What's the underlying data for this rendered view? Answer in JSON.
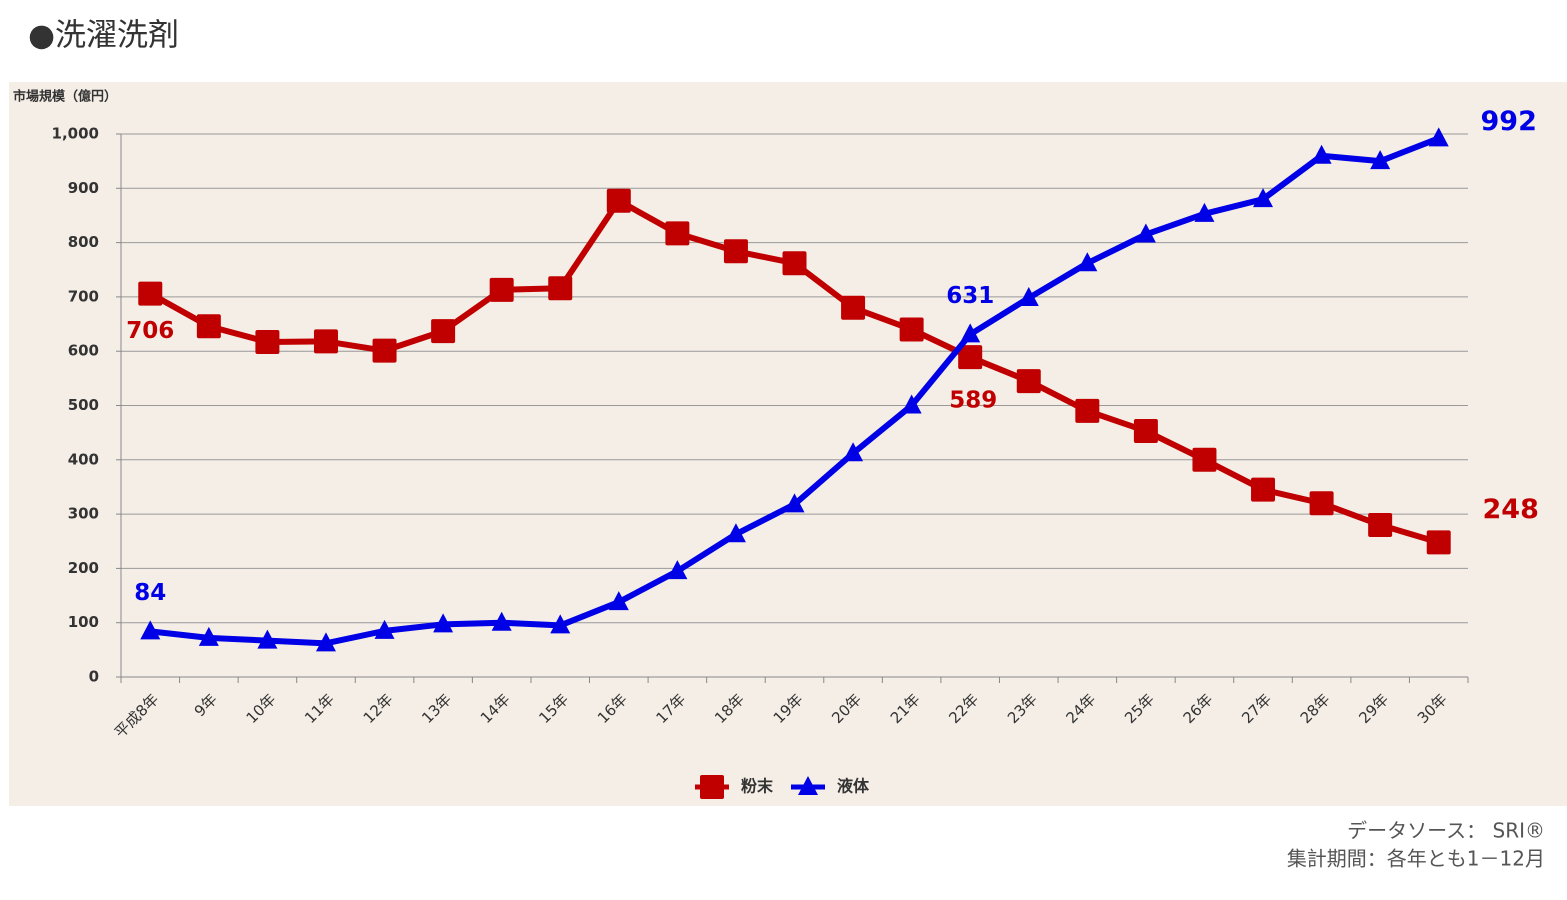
{
  "header": {
    "title": "●洗濯洗剤"
  },
  "chart_data": {
    "type": "line",
    "y_axis_label": "市場規模（億円）",
    "categories": [
      "平成8年",
      "9年",
      "10年",
      "11年",
      "12年",
      "13年",
      "14年",
      "15年",
      "16年",
      "17年",
      "18年",
      "19年",
      "20年",
      "21年",
      "22年",
      "23年",
      "24年",
      "25年",
      "26年",
      "27年",
      "28年",
      "29年",
      "30年"
    ],
    "series": [
      {
        "name": "粉末",
        "color": "#c00000",
        "marker": "square",
        "values": [
          706,
          646,
          617,
          618,
          601,
          637,
          713,
          716,
          877,
          817,
          784,
          762,
          680,
          640,
          589,
          545,
          490,
          453,
          400,
          345,
          320,
          280,
          248
        ],
        "value_labels": [
          706,
          null,
          null,
          null,
          null,
          null,
          null,
          null,
          null,
          null,
          null,
          null,
          null,
          null,
          589,
          null,
          null,
          null,
          null,
          null,
          null,
          null,
          248
        ]
      },
      {
        "name": "液体",
        "color": "#0000e6",
        "marker": "triangle",
        "values": [
          84,
          72,
          67,
          62,
          85,
          97,
          100,
          95,
          138,
          195,
          263,
          318,
          412,
          500,
          631,
          698,
          762,
          815,
          853,
          880,
          960,
          950,
          992
        ],
        "value_labels": [
          84,
          null,
          null,
          null,
          null,
          null,
          null,
          null,
          null,
          null,
          null,
          null,
          null,
          null,
          631,
          null,
          null,
          null,
          null,
          null,
          null,
          null,
          992
        ]
      }
    ],
    "ylim": [
      0,
      1000
    ],
    "yticks": [
      0,
      100,
      200,
      300,
      400,
      500,
      600,
      700,
      800,
      900,
      {
        "value": 1000,
        "label": "1,000"
      }
    ],
    "grid": true,
    "legend": "bottom"
  },
  "footer": {
    "source": "データソース： SRI®",
    "period": "集計期間：各年とも1－12月"
  }
}
